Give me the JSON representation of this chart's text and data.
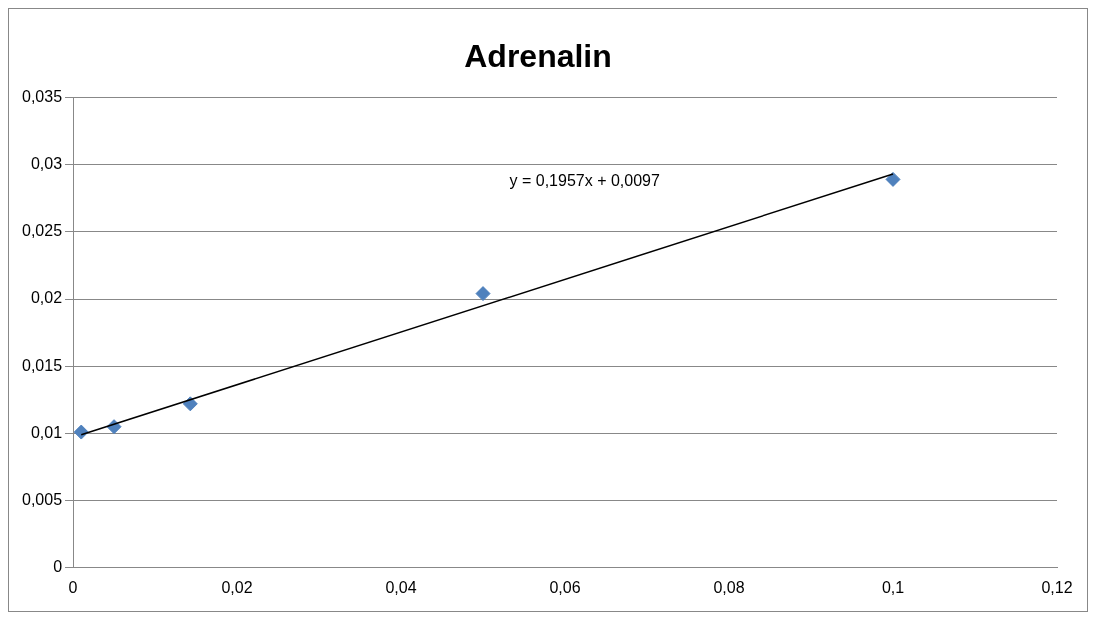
{
  "chart_data": {
    "type": "scatter",
    "title": "Adrenalin",
    "series": [
      {
        "type": "scatter",
        "color": "#4f81bd",
        "marker": "diamond",
        "x": [
          0.001,
          0.005,
          0.0143,
          0.05,
          0.1
        ],
        "values": [
          0.0101,
          0.0105,
          0.0122,
          0.0204,
          0.0289
        ]
      },
      {
        "type": "line",
        "color": "#000000",
        "marker": "none",
        "x": [
          0.001,
          0.1
        ],
        "values": [
          0.0099,
          0.0293
        ]
      }
    ],
    "xlim": [
      0,
      0.12
    ],
    "xticks": [
      0,
      {
        "value": 0.02,
        "label": "0,02"
      },
      {
        "value": 0.04,
        "label": "0,04"
      },
      {
        "value": 0.06,
        "label": "0,06"
      },
      {
        "value": 0.08,
        "label": "0,08"
      },
      {
        "value": 0.1,
        "label": "0,1"
      },
      {
        "value": 0.12,
        "label": "0,12"
      }
    ],
    "ylim": [
      0,
      0.035
    ],
    "yticks": [
      0,
      {
        "value": 0.005,
        "label": "0,005"
      },
      {
        "value": 0.01,
        "label": "0,01"
      },
      {
        "value": 0.015,
        "label": "0,015"
      },
      {
        "value": 0.02,
        "label": "0,02"
      },
      {
        "value": 0.025,
        "label": "0,025"
      },
      {
        "value": 0.03,
        "label": "0,03"
      },
      {
        "value": 0.035,
        "label": "0,035"
      }
    ],
    "grid": "y",
    "legend": false,
    "annotations": [
      "y = 0,1957x + 0,0097"
    ]
  }
}
